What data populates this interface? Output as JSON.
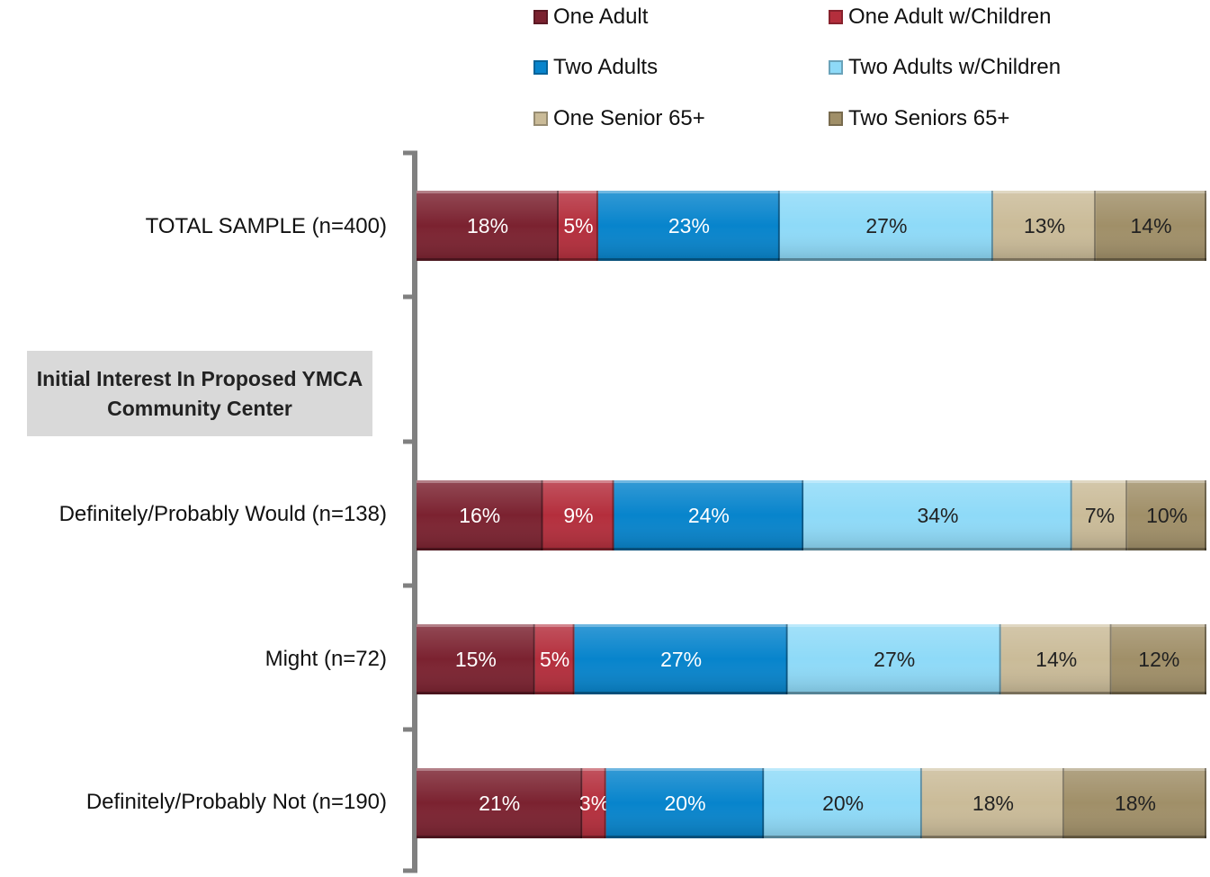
{
  "chart_data": {
    "type": "bar",
    "orientation": "horizontal",
    "stacked": true,
    "value_unit": "%",
    "categories": [
      "TOTAL SAMPLE (n=400)",
      "Definitely/Probably Would (n=138)",
      "Might (n=72)",
      "Definitely/Probably Not (n=190)"
    ],
    "section_label": "Initial Interest In Proposed YMCA Community Center",
    "series": [
      {
        "name": "One Adult",
        "color": "#7b2230",
        "values": [
          18,
          16,
          15,
          21
        ]
      },
      {
        "name": "One Adult w/Children",
        "color": "#b42e3c",
        "values": [
          5,
          9,
          5,
          3
        ]
      },
      {
        "name": "Two Adults",
        "color": "#0784cc",
        "values": [
          23,
          24,
          27,
          20
        ]
      },
      {
        "name": "Two Adults w/Children",
        "color": "#8edaf8",
        "values": [
          27,
          34,
          27,
          20
        ]
      },
      {
        "name": "One Senior 65+",
        "color": "#cabb98",
        "values": [
          13,
          7,
          14,
          18
        ]
      },
      {
        "name": "Two Seniors 65+",
        "color": "#a08f68",
        "values": [
          14,
          10,
          12,
          18
        ]
      }
    ],
    "data_labels": [
      [
        "18%",
        "5%",
        "23%",
        "27%",
        "13%",
        "14%"
      ],
      [
        "16%",
        "9%",
        "24%",
        "34%",
        "7%",
        "10%"
      ],
      [
        "15%",
        "5%",
        "27%",
        "27%",
        "14%",
        "12%"
      ],
      [
        "21%",
        "3%",
        "20%",
        "20%",
        "18%",
        "18%"
      ]
    ],
    "legend_position": "top",
    "grid": false
  }
}
